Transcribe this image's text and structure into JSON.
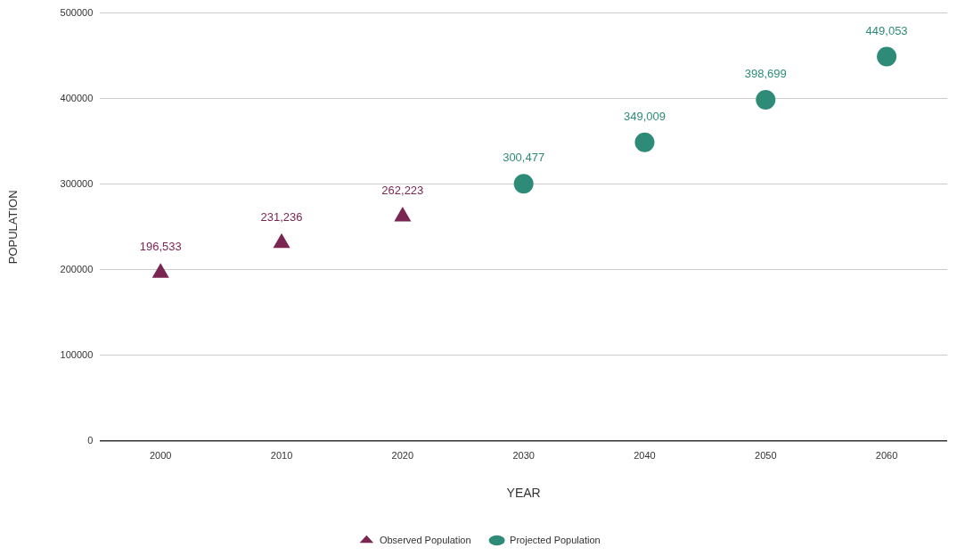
{
  "chart_data": {
    "type": "scatter",
    "xlabel": "YEAR",
    "ylabel": "POPULATION",
    "categories": [
      "2000",
      "2010",
      "2020",
      "2030",
      "2040",
      "2050",
      "2060"
    ],
    "series": [
      {
        "name": "Observed Population",
        "color": "#7a2552",
        "marker": "triangle",
        "values": [
          196533,
          231236,
          262223,
          null,
          null,
          null,
          null
        ],
        "value_labels": [
          "196,533",
          "231,236",
          "262,223",
          null,
          null,
          null,
          null
        ]
      },
      {
        "name": "Projected Population",
        "color": "#2e8b78",
        "marker": "circle",
        "values": [
          null,
          null,
          null,
          300477,
          349009,
          398699,
          449053
        ],
        "value_labels": [
          null,
          null,
          null,
          "300,477",
          "349,009",
          "398,699",
          "449,053"
        ]
      }
    ],
    "ylim": [
      0,
      500000
    ],
    "yticks": [
      0,
      100000,
      200000,
      300000,
      400000,
      500000
    ],
    "grid": "y",
    "legend": "bottom"
  }
}
